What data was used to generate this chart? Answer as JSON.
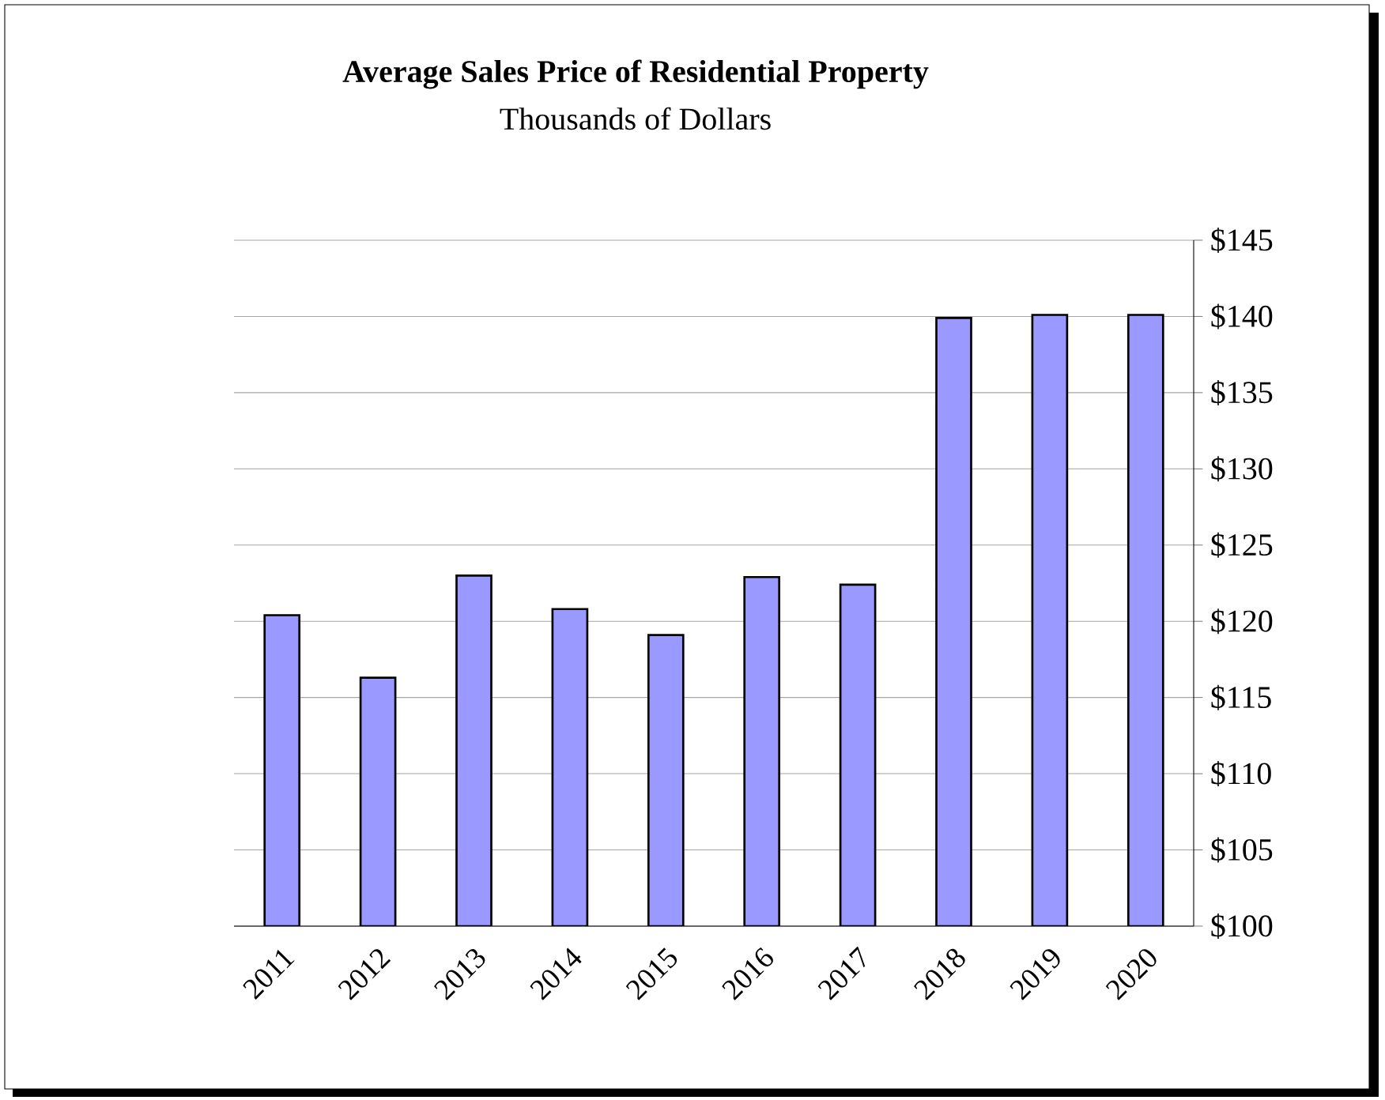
{
  "chart_data": {
    "type": "bar",
    "title": "Average Sales Price of Residential Property",
    "subtitle": "Thousands of Dollars",
    "categories": [
      "2011",
      "2012",
      "2013",
      "2014",
      "2015",
      "2016",
      "2017",
      "2018",
      "2019",
      "2020"
    ],
    "values": [
      120.4,
      116.3,
      123.0,
      120.8,
      119.1,
      122.9,
      122.4,
      139.9,
      140.1,
      140.1
    ],
    "color": "#9999ff",
    "ylim": [
      100,
      145
    ],
    "yticks": [
      {
        "value": 100,
        "label": "$100"
      },
      {
        "value": 105,
        "label": "$105"
      },
      {
        "value": 110,
        "label": "$110"
      },
      {
        "value": 115,
        "label": "$115"
      },
      {
        "value": 120,
        "label": "$120"
      },
      {
        "value": 125,
        "label": "$125"
      },
      {
        "value": 130,
        "label": "$130"
      },
      {
        "value": 135,
        "label": "$135"
      },
      {
        "value": 140,
        "label": "$140"
      },
      {
        "value": 145,
        "label": "$145"
      }
    ],
    "grid": "y"
  }
}
